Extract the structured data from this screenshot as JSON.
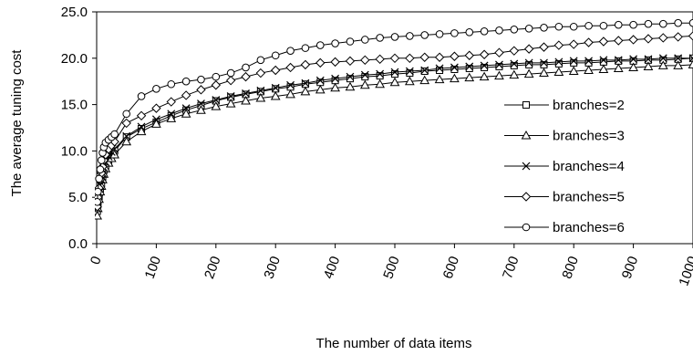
{
  "chart_data": {
    "type": "line",
    "xlabel": "The number of data items",
    "ylabel": "The average tuning cost",
    "xlim": [
      0,
      1000
    ],
    "ylim": [
      0,
      25
    ],
    "x_ticks": [
      0,
      100,
      200,
      300,
      400,
      500,
      600,
      700,
      800,
      900,
      1000
    ],
    "x_tick_labels": [
      "0",
      "100",
      "200",
      "300",
      "400",
      "500",
      "600",
      "700",
      "800",
      "900",
      "1000"
    ],
    "y_ticks": [
      0,
      5,
      10,
      15,
      20,
      25
    ],
    "y_tick_labels": [
      "0.0",
      "5.0",
      "10.0",
      "15.0",
      "20.0",
      "25.0"
    ],
    "grid": false,
    "legend_position": "right",
    "x": [
      1,
      2,
      4,
      6,
      8,
      10,
      12,
      15,
      20,
      25,
      30,
      50,
      75,
      100,
      125,
      150,
      175,
      200,
      225,
      250,
      275,
      300,
      325,
      350,
      375,
      400,
      425,
      450,
      475,
      500,
      525,
      550,
      575,
      600,
      625,
      650,
      675,
      700,
      725,
      750,
      775,
      800,
      825,
      850,
      875,
      900,
      925,
      950,
      975,
      1000
    ],
    "series": [
      {
        "name": "branches=2",
        "marker": "square",
        "values": [
          3.5,
          4.2,
          5.1,
          5.9,
          6.5,
          7.2,
          7.9,
          8.4,
          9.0,
          9.6,
          10.0,
          11.5,
          12.4,
          13.1,
          13.8,
          14.4,
          14.9,
          15.4,
          15.8,
          16.1,
          16.4,
          16.7,
          16.9,
          17.2,
          17.4,
          17.6,
          17.8,
          18.0,
          18.1,
          18.3,
          18.4,
          18.6,
          18.7,
          18.8,
          18.9,
          19.0,
          19.1,
          19.2,
          19.3,
          19.3,
          19.4,
          19.5,
          19.5,
          19.6,
          19.7,
          19.7,
          19.8,
          19.8,
          19.9,
          20.0
        ]
      },
      {
        "name": "branches=3",
        "marker": "triangle",
        "values": [
          3.0,
          3.8,
          4.8,
          5.6,
          6.2,
          6.9,
          7.5,
          8.1,
          8.7,
          9.2,
          9.6,
          11.0,
          12.1,
          12.9,
          13.5,
          14.0,
          14.4,
          14.8,
          15.1,
          15.4,
          15.7,
          15.9,
          16.1,
          16.4,
          16.6,
          16.8,
          16.9,
          17.1,
          17.2,
          17.4,
          17.5,
          17.6,
          17.7,
          17.8,
          17.9,
          18.0,
          18.1,
          18.2,
          18.3,
          18.4,
          18.5,
          18.6,
          18.7,
          18.8,
          18.9,
          19.0,
          19.1,
          19.2,
          19.2,
          19.3
        ]
      },
      {
        "name": "branches=4",
        "marker": "x",
        "values": [
          3.8,
          4.6,
          5.5,
          6.3,
          6.9,
          7.6,
          8.2,
          8.8,
          9.4,
          9.9,
          10.2,
          11.6,
          12.6,
          13.4,
          14.0,
          14.6,
          15.1,
          15.5,
          15.9,
          16.2,
          16.5,
          16.8,
          17.1,
          17.3,
          17.6,
          17.8,
          18.0,
          18.2,
          18.3,
          18.5,
          18.6,
          18.7,
          18.9,
          19.0,
          19.1,
          19.2,
          19.3,
          19.4,
          19.5,
          19.5,
          19.6,
          19.7,
          19.7,
          19.8,
          19.8,
          19.9,
          19.9,
          20.0,
          20.0,
          20.0
        ]
      },
      {
        "name": "branches=5",
        "marker": "diamond",
        "values": [
          4.0,
          5.0,
          6.0,
          6.9,
          7.6,
          8.3,
          9.0,
          9.6,
          10.2,
          10.6,
          11.0,
          13.0,
          13.8,
          14.6,
          15.3,
          16.0,
          16.6,
          17.1,
          17.6,
          18.0,
          18.4,
          18.7,
          19.0,
          19.3,
          19.5,
          19.6,
          19.7,
          19.8,
          19.9,
          20.0,
          20.0,
          20.1,
          20.1,
          20.2,
          20.3,
          20.4,
          20.6,
          20.8,
          21.0,
          21.2,
          21.4,
          21.5,
          21.7,
          21.8,
          21.9,
          22.0,
          22.1,
          22.2,
          22.3,
          22.4
        ]
      },
      {
        "name": "branches=6",
        "marker": "circle",
        "values": [
          4.5,
          5.6,
          7.0,
          8.0,
          9.0,
          9.8,
          10.4,
          10.9,
          11.2,
          11.5,
          11.8,
          14.0,
          15.9,
          16.7,
          17.2,
          17.5,
          17.7,
          18.0,
          18.4,
          19.0,
          19.8,
          20.3,
          20.8,
          21.1,
          21.4,
          21.6,
          21.8,
          22.0,
          22.2,
          22.3,
          22.4,
          22.5,
          22.6,
          22.7,
          22.8,
          22.9,
          23.0,
          23.1,
          23.2,
          23.3,
          23.4,
          23.4,
          23.5,
          23.5,
          23.6,
          23.6,
          23.7,
          23.7,
          23.8,
          23.8
        ]
      }
    ]
  }
}
